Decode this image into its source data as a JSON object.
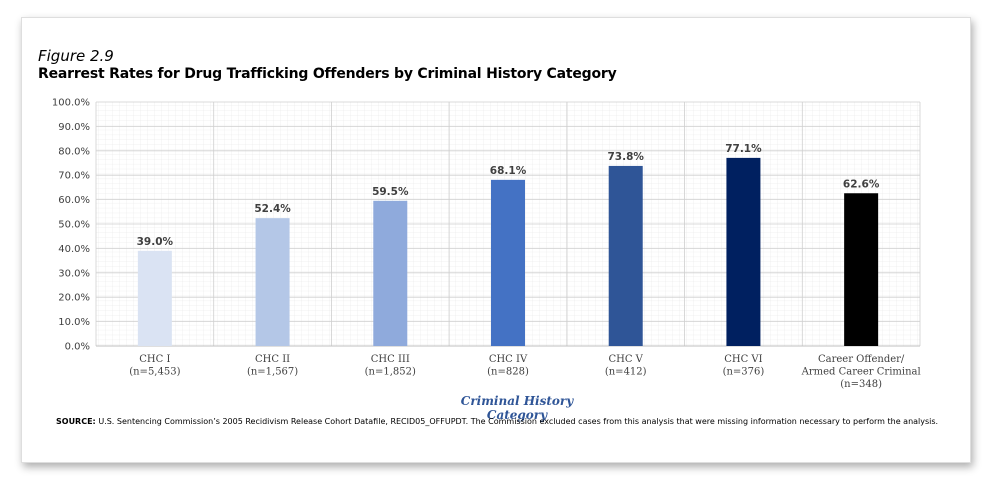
{
  "figure": {
    "number": "Figure 2.9",
    "title": "Rearrest Rates for Drug Trafficking Offenders by Criminal History Category",
    "source_label": "SOURCE:",
    "source_text": "U.S. Sentencing Commission’s 2005 Recidivism Release Cohort Datafile, RECID05_OFFUPDT. The Commission excluded cases from this analysis that were missing information necessary to perform the analysis."
  },
  "chart_data": {
    "type": "bar",
    "title": "Rearrest Rates for Drug Trafficking Offenders by Criminal History Category",
    "xlabel": "Criminal History Category",
    "ylabel": "",
    "ylim": [
      0,
      100
    ],
    "grid": true,
    "y_ticks": [
      "0.0%",
      "10.0%",
      "20.0%",
      "30.0%",
      "40.0%",
      "50.0%",
      "60.0%",
      "70.0%",
      "80.0%",
      "90.0%",
      "100.0%"
    ],
    "categories": [
      [
        "CHC I",
        "(n=5,453)"
      ],
      [
        "CHC II",
        "(n=1,567)"
      ],
      [
        "CHC III",
        "(n=1,852)"
      ],
      [
        "CHC IV",
        "(n=828)"
      ],
      [
        "CHC V",
        "(n=412)"
      ],
      [
        "CHC VI",
        "(n=376)"
      ],
      [
        "Career Offender/",
        "Armed Career Criminal",
        "(n=348)"
      ]
    ],
    "values": [
      39.0,
      52.4,
      59.5,
      68.1,
      73.8,
      77.1,
      62.6
    ],
    "value_labels": [
      "39.0%",
      "52.4%",
      "59.5%",
      "68.1%",
      "73.8%",
      "77.1%",
      "62.6%"
    ],
    "colors": [
      "#dae3f3",
      "#b4c7e7",
      "#8faadc",
      "#4472c4",
      "#2f5597",
      "#002060",
      "#000000"
    ]
  }
}
